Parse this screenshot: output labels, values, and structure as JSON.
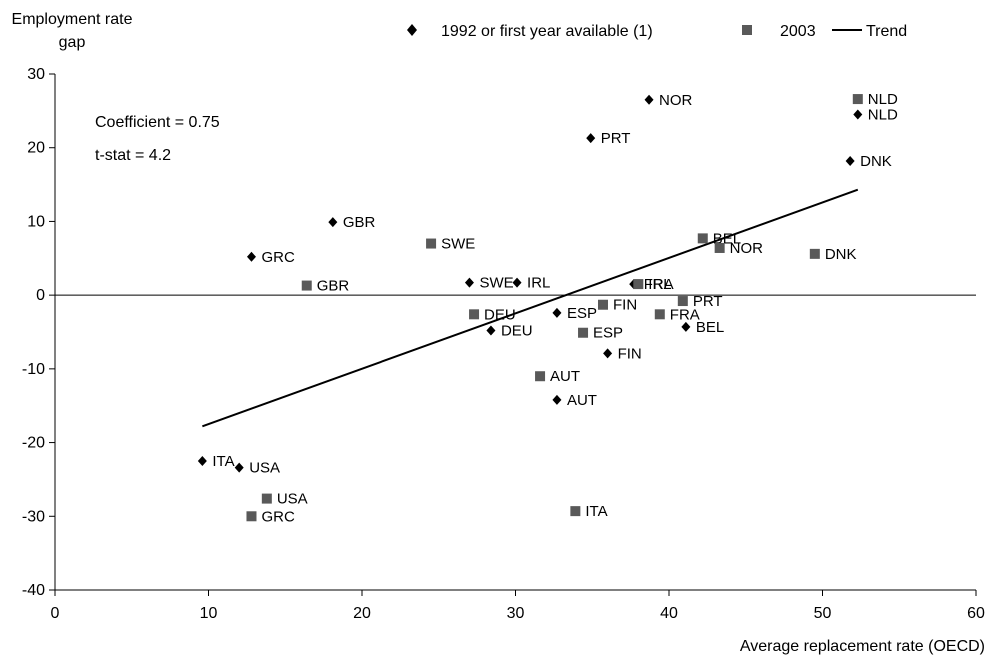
{
  "chart_data": {
    "type": "scatter",
    "ylabel_line1": "Employment rate",
    "ylabel_line2": "gap",
    "xlabel": "Average replacement rate (OECD)",
    "xlim": [
      0,
      60
    ],
    "ylim": [
      -40,
      30
    ],
    "xticks": [
      0,
      10,
      20,
      30,
      40,
      50,
      60
    ],
    "yticks": [
      -40,
      -30,
      -20,
      -10,
      0,
      10,
      20,
      30
    ],
    "grid": false,
    "legend_position": "top",
    "annotations": [
      "Coefficient = 0.75",
      "t-stat = 4.2"
    ],
    "series": [
      {
        "name": "1992 or first year available (1)",
        "marker": "diamond",
        "points": [
          {
            "label": "NOR",
            "x": 38.7,
            "y": 26.5
          },
          {
            "label": "NLD",
            "x": 52.3,
            "y": 24.5
          },
          {
            "label": "PRT",
            "x": 34.9,
            "y": 21.3
          },
          {
            "label": "DNK",
            "x": 51.8,
            "y": 18.2
          },
          {
            "label": "GBR",
            "x": 18.1,
            "y": 9.9
          },
          {
            "label": "GRC",
            "x": 12.8,
            "y": 5.2
          },
          {
            "label": "SWE",
            "x": 27.0,
            "y": 1.7
          },
          {
            "label": "IRL",
            "x": 30.1,
            "y": 1.7
          },
          {
            "label": "FRA",
            "x": 37.7,
            "y": 1.5
          },
          {
            "label": "ESP",
            "x": 32.7,
            "y": -2.4
          },
          {
            "label": "DEU",
            "x": 28.4,
            "y": -4.8
          },
          {
            "label": "BEL",
            "x": 41.1,
            "y": -4.3
          },
          {
            "label": "FIN",
            "x": 36.0,
            "y": -7.9
          },
          {
            "label": "AUT",
            "x": 32.7,
            "y": -14.2
          },
          {
            "label": "ITA",
            "x": 9.6,
            "y": -22.5
          },
          {
            "label": "USA",
            "x": 12.0,
            "y": -23.4
          }
        ]
      },
      {
        "name": "2003",
        "marker": "square",
        "points": [
          {
            "label": "NLD",
            "x": 52.3,
            "y": 26.6
          },
          {
            "label": "BEL",
            "x": 42.2,
            "y": 7.7
          },
          {
            "label": "SWE",
            "x": 24.5,
            "y": 7.0
          },
          {
            "label": "NOR",
            "x": 43.3,
            "y": 6.4
          },
          {
            "label": "DNK",
            "x": 49.5,
            "y": 5.6
          },
          {
            "label": "GBR",
            "x": 16.4,
            "y": 1.3
          },
          {
            "label": "IRL",
            "x": 38.0,
            "y": 1.5
          },
          {
            "label": "DEU",
            "x": 27.3,
            "y": -2.6
          },
          {
            "label": "FIN",
            "x": 35.7,
            "y": -1.3
          },
          {
            "label": "PRT",
            "x": 40.9,
            "y": -0.8
          },
          {
            "label": "FRA",
            "x": 39.4,
            "y": -2.6
          },
          {
            "label": "ESP",
            "x": 34.4,
            "y": -5.1
          },
          {
            "label": "AUT",
            "x": 31.6,
            "y": -11.0
          },
          {
            "label": "USA",
            "x": 13.8,
            "y": -27.6
          },
          {
            "label": "GRC",
            "x": 12.8,
            "y": -30.0
          },
          {
            "label": "ITA",
            "x": 33.9,
            "y": -29.3
          }
        ]
      },
      {
        "name": "Trend",
        "type": "line",
        "points": [
          {
            "x": 9.6,
            "y": -17.8
          },
          {
            "x": 52.3,
            "y": 14.3
          }
        ]
      }
    ]
  },
  "colors": {
    "markers": "#000000",
    "squares": "#595959",
    "axis": "#000000",
    "background": "#ffffff"
  }
}
